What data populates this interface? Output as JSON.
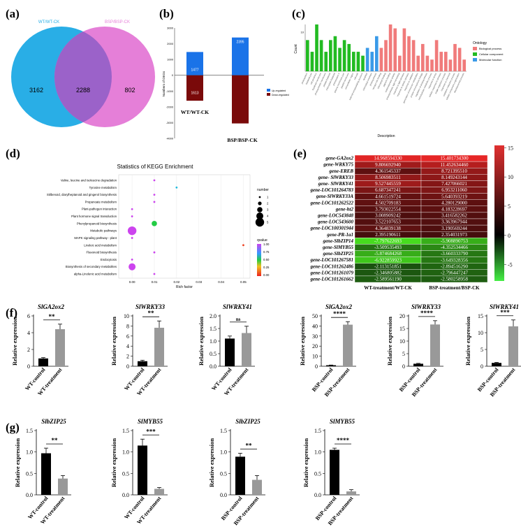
{
  "panel_labels": [
    "(a)",
    "(b)",
    "(c)",
    "(d)",
    "(e)",
    "(f)",
    "(g)"
  ],
  "colors": {
    "venn_left": "#29aee6",
    "venn_right": "#e57fd8",
    "venn_overlap": "#9b62c9",
    "up": "#1a73e8",
    "down": "#7a0a0a",
    "bio": "#f07b7b",
    "cell": "#22bb22",
    "mol": "#3a9ae8",
    "bar_control": "#000000",
    "bar_treatment": "#999999"
  },
  "chart_data": [
    {
      "id": "venn",
      "type": "venn",
      "sets": [
        {
          "name": "WT/WT-CK",
          "only": 3162
        },
        {
          "name": "BSP/BSP-CK",
          "only": 802
        }
      ],
      "overlap": 2288
    },
    {
      "id": "degs",
      "type": "bar",
      "ylabel": "Numbers of DEGs",
      "categories": [
        "WT/WT-CK",
        "BSP/BSP-CK"
      ],
      "series": [
        {
          "name": "Up-regulated",
          "values": [
            1477,
            2395
          ]
        },
        {
          "name": "Down-regulated",
          "values": [
            -1613,
            -3052
          ]
        }
      ],
      "yticks": [
        "3000",
        "2000",
        "1000",
        "0",
        "-1000",
        "-2000",
        "-3000",
        "-4000"
      ],
      "ylim": [
        -4000,
        3000
      ],
      "legend": "right"
    },
    {
      "id": "go",
      "type": "bar",
      "ylabel": "Count",
      "xlabel": "Description",
      "legend_title": "Ontology",
      "legend_items": [
        "Biological process",
        "Cellular component",
        "Molecular function"
      ],
      "ytick": "10",
      "categories": [
        "photosystem",
        "thylakoid part",
        "cell periphery",
        "thylakoid membrane",
        "photosynthetic membrane",
        "plastid thylakoid",
        "chloroplast thylakoid",
        "photosystem II",
        "plasma membrane part",
        "plastid membrane",
        "extracellular region",
        "cell wall",
        "external encapsulating structure",
        "apoplast",
        "chloroplast envelope",
        "photosynthesis",
        "tetrapyrrole binding",
        "chlorophyll binding",
        "pigment binding",
        "oxidoreductase activity",
        "photosynthesis, light harvesting",
        "response to light stimulus",
        "response to abiotic stimulus",
        "response to radiation",
        "generation of precursor metabolites",
        "protein-chromophore linkage",
        "regulation of photosynthesis",
        "carbohydrate metabolic process",
        "response to stress",
        "cellular response to stimulus",
        "single-organism process",
        "response to chemical",
        "oxidation-reduction process",
        "cellular component organization",
        "developmental process"
      ],
      "values": [
        8,
        5,
        12,
        8,
        5,
        8,
        9,
        6,
        8,
        7,
        5,
        5,
        4,
        6,
        5,
        9,
        6,
        8,
        12,
        11,
        4,
        11,
        9,
        8,
        4,
        7,
        4,
        3,
        8,
        5,
        5,
        3,
        7,
        6,
        3
      ],
      "groups": [
        "cell",
        "cell",
        "cell",
        "cell",
        "cell",
        "cell",
        "cell",
        "cell",
        "cell",
        "cell",
        "cell",
        "cell",
        "cell",
        "mol",
        "mol",
        "mol",
        "bio",
        "bio",
        "bio",
        "bio",
        "bio",
        "bio",
        "bio",
        "bio",
        "bio",
        "bio",
        "bio",
        "bio",
        "bio",
        "bio",
        "bio",
        "bio",
        "bio",
        "bio",
        "bio"
      ]
    },
    {
      "id": "kegg",
      "type": "scatter",
      "title": "Statistics of KEGG Enrichment",
      "xlabel": "Rich factor",
      "xticks": [
        "0.00",
        "0.01",
        "0.02",
        "0.03",
        "0.04",
        "0.05"
      ],
      "xlim": [
        -0.006,
        0.053
      ],
      "size_legend_title": "number",
      "size_legend_values": [
        "1",
        "2",
        "3",
        "4",
        "5"
      ],
      "color_legend_title": "qvalue",
      "color_legend_ticks": [
        "1.00",
        "0.75",
        "0.50",
        "0.25",
        "0.00"
      ],
      "pathways": [
        "Valine, leucine and isoleucine degradation",
        "Tyrosine metabolism",
        "Stilbenoid, diarylheptanoid and gingerol biosynthesis",
        "Propanoate metabolism",
        "Plant-pathogen interaction",
        "Plant hormone signal transduction",
        "Phenylpropanoid biosynthesis",
        "Metabolic pathways",
        "MAPK signaling pathway - plant",
        "Linoleic acid metabolism",
        "Flavonoid biosynthesis",
        "Endocytosis",
        "Biosynthesis of secondary metabolites",
        "alpha-Linolenic acid metabolism"
      ],
      "rich_factor": [
        0.01,
        0.02,
        0.01,
        0.01,
        0.0,
        0.0,
        0.01,
        0.0,
        0.0,
        0.05,
        0.01,
        0.0,
        0.0,
        0.01
      ],
      "number": [
        1,
        1,
        1,
        1,
        1,
        1,
        3,
        5,
        1,
        1,
        1,
        1,
        4,
        1
      ],
      "qvalue": [
        1.0,
        0.6,
        1.0,
        1.0,
        1.0,
        1.0,
        0.4,
        1.0,
        1.0,
        0.1,
        1.0,
        1.0,
        1.0,
        1.0
      ]
    },
    {
      "id": "heatmap",
      "type": "heatmap",
      "columns": [
        "WT-treatment/WT-CK",
        "BSP-treatment/BSP-CK"
      ],
      "rows": [
        "gene-GA2ox2",
        "gene-WRKY75",
        "gene-EREB",
        "gene- SlWRKY33",
        "gene- SlWRKY41",
        "gene-LOC101264783",
        "gene-SlWRKY33A",
        "gene-LOC101262522",
        "gene-ht2",
        "gene-LOC543848",
        "gene-LOC543600",
        "gene-LOC100301944",
        "gene-PR-1a1",
        "gene-SlbZIP14",
        "gene-SlMYB55",
        "gene-SlbZIP25",
        "gene-LOC101267581",
        "gene-LOC101262486",
        "gene-LOC101261079",
        "gene-LOC101261662"
      ],
      "labels": [
        [
          "14.968594330",
          "15.401734300"
        ],
        [
          "9.806692940",
          "11.452634460"
        ],
        [
          "4.361545337",
          "8.721395510"
        ],
        [
          "8.506983511",
          "8.149243144"
        ],
        [
          "9.527445559",
          "7.427066021"
        ],
        [
          "6.687347241",
          "6.953211060"
        ],
        [
          "4.661519724",
          "5.640393219"
        ],
        [
          "4.502709183",
          "4.280129000"
        ],
        [
          "3.793022554",
          "4.183228697"
        ],
        [
          "3.008909242",
          "3.416582262"
        ],
        [
          "3.522107653",
          "3.363967944"
        ],
        [
          "4.364839138",
          "3.190569244"
        ],
        [
          "2.395190611",
          "2.354031973"
        ],
        [
          "-7.797622693",
          "-5.908890753"
        ],
        [
          "-3.509535493",
          "-4.352534466"
        ],
        [
          "-5.874684268",
          "-3.660333790"
        ],
        [
          "-6.922859923",
          "-3.649328356"
        ],
        [
          "-2.113151851",
          "-2.894516290"
        ],
        [
          "-2.346805882",
          "-2.796447247"
        ],
        [
          "-2.589561190",
          "-2.580258958"
        ]
      ],
      "values": [
        [
          14.96859433,
          15.4017343
        ],
        [
          9.80669294,
          11.45263446
        ],
        [
          4.361545337,
          8.72139551
        ],
        [
          8.506983511,
          8.149243144
        ],
        [
          9.527445559,
          7.427066021
        ],
        [
          6.687347241,
          6.95321106
        ],
        [
          4.661519724,
          5.640393219
        ],
        [
          4.502709183,
          4.280129
        ],
        [
          3.793022554,
          4.183228697
        ],
        [
          3.008909242,
          3.416582262
        ],
        [
          3.522107653,
          3.363967944
        ],
        [
          4.364839138,
          3.190569244
        ],
        [
          2.395190611,
          2.354031973
        ],
        [
          -7.797622693,
          -5.908890753
        ],
        [
          -3.509535493,
          -4.352534466
        ],
        [
          -5.874684268,
          -3.66033379
        ],
        [
          -6.922859923,
          -3.649328356
        ],
        [
          -2.113151851,
          -2.89451629
        ],
        [
          -2.346805882,
          -2.796447247
        ],
        [
          -2.58956119,
          -2.580258958
        ]
      ],
      "colorbar_ticks": [
        "15",
        "10",
        "5",
        "0",
        "-5"
      ],
      "colorbar_range": [
        -7.8,
        15.4
      ]
    }
  ],
  "qpcr_ylabel": "Relative expression",
  "qpcr": [
    {
      "title": "SlGA2ox2",
      "categories": [
        "WT-control",
        "WT-treatment"
      ],
      "values": [
        0.93,
        4.42
      ],
      "errors": [
        0.1,
        0.6
      ],
      "yticks": [
        "0",
        "2",
        "4",
        "6"
      ],
      "ymax": 6,
      "sig": "**"
    },
    {
      "title": "SlWRKY33",
      "categories": [
        "WT-control",
        "WT-treatment"
      ],
      "values": [
        1.0,
        7.65
      ],
      "errors": [
        0.2,
        1.35
      ],
      "yticks": [
        "0",
        "2",
        "4",
        "6",
        "8",
        "10"
      ],
      "ymax": 10,
      "sig": "**"
    },
    {
      "title": "SlWRKY41",
      "categories": [
        "WT-control",
        "WT-treatment"
      ],
      "values": [
        1.1,
        1.32
      ],
      "errors": [
        0.1,
        0.27
      ],
      "yticks": [
        "0.0",
        "0.5",
        "1.0",
        "1.5",
        "2.0"
      ],
      "ymax": 2.0,
      "sig": "ns"
    },
    {
      "title": "SlGA2ox2",
      "categories": [
        "BSP-control",
        "BSP-treatment"
      ],
      "values": [
        1.0,
        41.3
      ],
      "errors": [
        0.2,
        3.0
      ],
      "yticks": [
        "0",
        "10",
        "20",
        "30",
        "40",
        "50"
      ],
      "ymax": 50,
      "sig": "****"
    },
    {
      "title": "SlWRKY33",
      "categories": [
        "BSP-control",
        "BSP-treatment"
      ],
      "values": [
        1.0,
        16.6
      ],
      "errors": [
        0.15,
        1.5
      ],
      "yticks": [
        "0",
        "5",
        "10",
        "15",
        "20"
      ],
      "ymax": 20,
      "sig": "****"
    },
    {
      "title": "SlWRKY41",
      "categories": [
        "BSP-control",
        "BSP-treatment"
      ],
      "values": [
        1.0,
        11.9
      ],
      "errors": [
        0.15,
        1.9
      ],
      "yticks": [
        "0",
        "5",
        "10",
        "15"
      ],
      "ymax": 15,
      "sig": "***"
    },
    {
      "title": "SlbZIP25",
      "categories": [
        "WT-control",
        "WT-treatment"
      ],
      "values": [
        0.97,
        0.38
      ],
      "errors": [
        0.12,
        0.07
      ],
      "yticks": [
        "0.0",
        "0.5",
        "1.0",
        "1.5"
      ],
      "ymax": 1.5,
      "sig": "**"
    },
    {
      "title": "SlMYB55",
      "categories": [
        "WT-control",
        "WT-treatment"
      ],
      "values": [
        1.15,
        0.14
      ],
      "errors": [
        0.15,
        0.03
      ],
      "yticks": [
        "0.0",
        "0.5",
        "1.0",
        "1.5"
      ],
      "ymax": 1.5,
      "sig": "***"
    },
    {
      "title": "SlbZIP25",
      "categories": [
        "BSP-control",
        "BSP-treatment"
      ],
      "values": [
        0.89,
        0.35
      ],
      "errors": [
        0.08,
        0.1
      ],
      "yticks": [
        "0.0",
        "0.5",
        "1.0",
        "1.5"
      ],
      "ymax": 1.5,
      "sig": "**"
    },
    {
      "title": "SlMYB55",
      "categories": [
        "BSP-control",
        "BSP-treatment"
      ],
      "values": [
        1.05,
        0.08
      ],
      "errors": [
        0.04,
        0.04
      ],
      "yticks": [
        "0.0",
        "0.5",
        "1.0",
        "1.5"
      ],
      "ymax": 1.5,
      "sig": "****"
    }
  ]
}
